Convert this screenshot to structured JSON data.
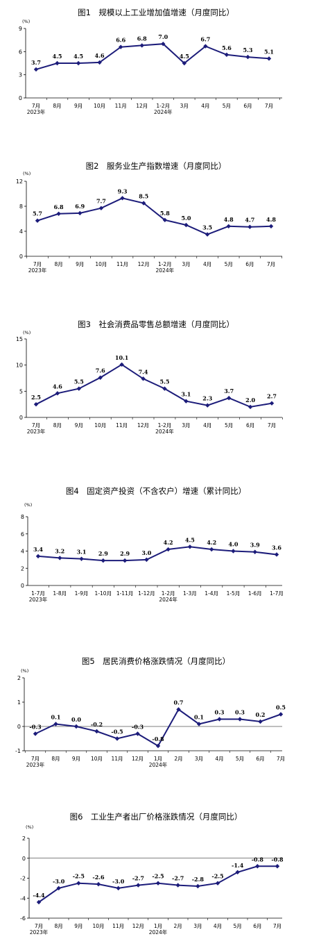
{
  "colors": {
    "line": "#1c1c7a",
    "axis": "#000000"
  },
  "chart_data": [
    {
      "type": "line",
      "title": "图1　规模以上工业增加值增速（月度同比）",
      "unit": "(%)",
      "categories": [
        "7月",
        "8月",
        "9月",
        "10月",
        "11月",
        "12月",
        "1-2月",
        "3月",
        "4月",
        "5月",
        "6月",
        "7月"
      ],
      "year_labels": [
        {
          "index": 0,
          "text": "2023年"
        },
        {
          "index": 6,
          "text": "2024年"
        }
      ],
      "values": [
        3.7,
        4.5,
        4.5,
        4.6,
        6.6,
        6.8,
        7.0,
        4.5,
        6.7,
        5.6,
        5.3,
        5.1
      ],
      "data_labels": [
        "3.7",
        "4.5",
        "4.5",
        "4.6",
        "6.6",
        "6.8",
        "7.0",
        "4.5",
        "6.7",
        "5.6",
        "5.3",
        "5.1"
      ],
      "ylim": [
        0,
        9
      ],
      "yticks": [
        0,
        3,
        6,
        9
      ]
    },
    {
      "type": "line",
      "title": "图2　服务业生产指数增速（月度同比）",
      "unit": "(%)",
      "categories": [
        "7月",
        "8月",
        "9月",
        "10月",
        "11月",
        "12月",
        "1-2月",
        "3月",
        "4月",
        "5月",
        "6月",
        "7月"
      ],
      "year_labels": [
        {
          "index": 0,
          "text": "2023年"
        },
        {
          "index": 6,
          "text": "2024年"
        }
      ],
      "values": [
        5.7,
        6.8,
        6.9,
        7.7,
        9.3,
        8.5,
        5.8,
        5.0,
        3.5,
        4.8,
        4.7,
        4.8
      ],
      "data_labels": [
        "5.7",
        "6.8",
        "6.9",
        "7.7",
        "9.3",
        "8.5",
        "5.8",
        "5.0",
        "3.5",
        "4.8",
        "4.7",
        "4.8"
      ],
      "ylim": [
        0,
        12
      ],
      "yticks": [
        0,
        4,
        8,
        12
      ]
    },
    {
      "type": "line",
      "title": "图3　社会消费品零售总额增速（月度同比）",
      "unit": "(%)",
      "categories": [
        "7月",
        "8月",
        "9月",
        "10月",
        "11月",
        "12月",
        "1-2月",
        "3月",
        "4月",
        "5月",
        "6月",
        "7月"
      ],
      "year_labels": [
        {
          "index": 0,
          "text": "2023年"
        },
        {
          "index": 6,
          "text": "2024年"
        }
      ],
      "values": [
        2.5,
        4.6,
        5.5,
        7.6,
        10.1,
        7.4,
        5.5,
        3.1,
        2.3,
        3.7,
        2.0,
        2.7
      ],
      "data_labels": [
        "2.5",
        "4.6",
        "5.5",
        "7.6",
        "10.1",
        "7.4",
        "5.5",
        "3.1",
        "2.3",
        "3.7",
        "2.0",
        "2.7"
      ],
      "ylim": [
        0,
        15
      ],
      "yticks": [
        0,
        5,
        10,
        15
      ]
    },
    {
      "type": "line",
      "title": "图4　固定资产投资（不含农户）增速（累计同比）",
      "unit": "(%)",
      "categories": [
        "1-7月",
        "1-8月",
        "1-9月",
        "1-10月",
        "1-11月",
        "1-12月",
        "1-2月",
        "1-3月",
        "1-4月",
        "1-5月",
        "1-6月",
        "1-7月"
      ],
      "year_labels": [
        {
          "index": 0,
          "text": "2023年"
        },
        {
          "index": 6,
          "text": "2024年"
        }
      ],
      "values": [
        3.4,
        3.2,
        3.1,
        2.9,
        2.9,
        3.0,
        4.2,
        4.5,
        4.2,
        4.0,
        3.9,
        3.6
      ],
      "data_labels": [
        "3.4",
        "3.2",
        "3.1",
        "2.9",
        "2.9",
        "3.0",
        "4.2",
        "4.5",
        "4.2",
        "4.0",
        "3.9",
        "3.6"
      ],
      "ylim": [
        0,
        8
      ],
      "yticks": [
        0,
        2,
        4,
        6,
        8
      ]
    },
    {
      "type": "line",
      "title": "图5　居民消费价格涨跌情况（月度同比）",
      "unit": "(%)",
      "categories": [
        "7月",
        "8月",
        "9月",
        "10月",
        "11月",
        "12月",
        "1月",
        "2月",
        "3月",
        "4月",
        "5月",
        "6月",
        "7月"
      ],
      "year_labels": [
        {
          "index": 0,
          "text": "2023年"
        },
        {
          "index": 6,
          "text": "2024年"
        }
      ],
      "values": [
        -0.3,
        0.1,
        0.0,
        -0.2,
        -0.5,
        -0.3,
        -0.8,
        0.7,
        0.1,
        0.3,
        0.3,
        0.2,
        0.5
      ],
      "data_labels": [
        "-0.3",
        "0.1",
        "0.0",
        "-0.2",
        "-0.5",
        "-0.3",
        "-0.8",
        "0.7",
        "0.1",
        "0.3",
        "0.3",
        "0.2",
        "0.5"
      ],
      "ylim": [
        -1,
        2
      ],
      "yticks": [
        -1,
        0,
        1,
        2
      ]
    },
    {
      "type": "line",
      "title": "图6　工业生产者出厂价格涨跌情况（月度同比）",
      "unit": "(%)",
      "categories": [
        "7月",
        "8月",
        "9月",
        "10月",
        "11月",
        "12月",
        "1月",
        "2月",
        "3月",
        "4月",
        "5月",
        "6月",
        "7月"
      ],
      "year_labels": [
        {
          "index": 0,
          "text": "2023年"
        },
        {
          "index": 6,
          "text": "2024年"
        }
      ],
      "values": [
        -4.4,
        -3.0,
        -2.5,
        -2.6,
        -3.0,
        -2.7,
        -2.5,
        -2.7,
        -2.8,
        -2.5,
        -1.4,
        -0.8,
        -0.8
      ],
      "data_labels": [
        "-4.4",
        "-3.0",
        "-2.5",
        "-2.6",
        "-3.0",
        "-2.7",
        "-2.5",
        "-2.7",
        "-2.8",
        "-2.5",
        "-1.4",
        "-0.8",
        "-0.8"
      ],
      "ylim": [
        -6,
        2
      ],
      "yticks": [
        -6,
        -4,
        -2,
        0,
        2
      ]
    }
  ]
}
